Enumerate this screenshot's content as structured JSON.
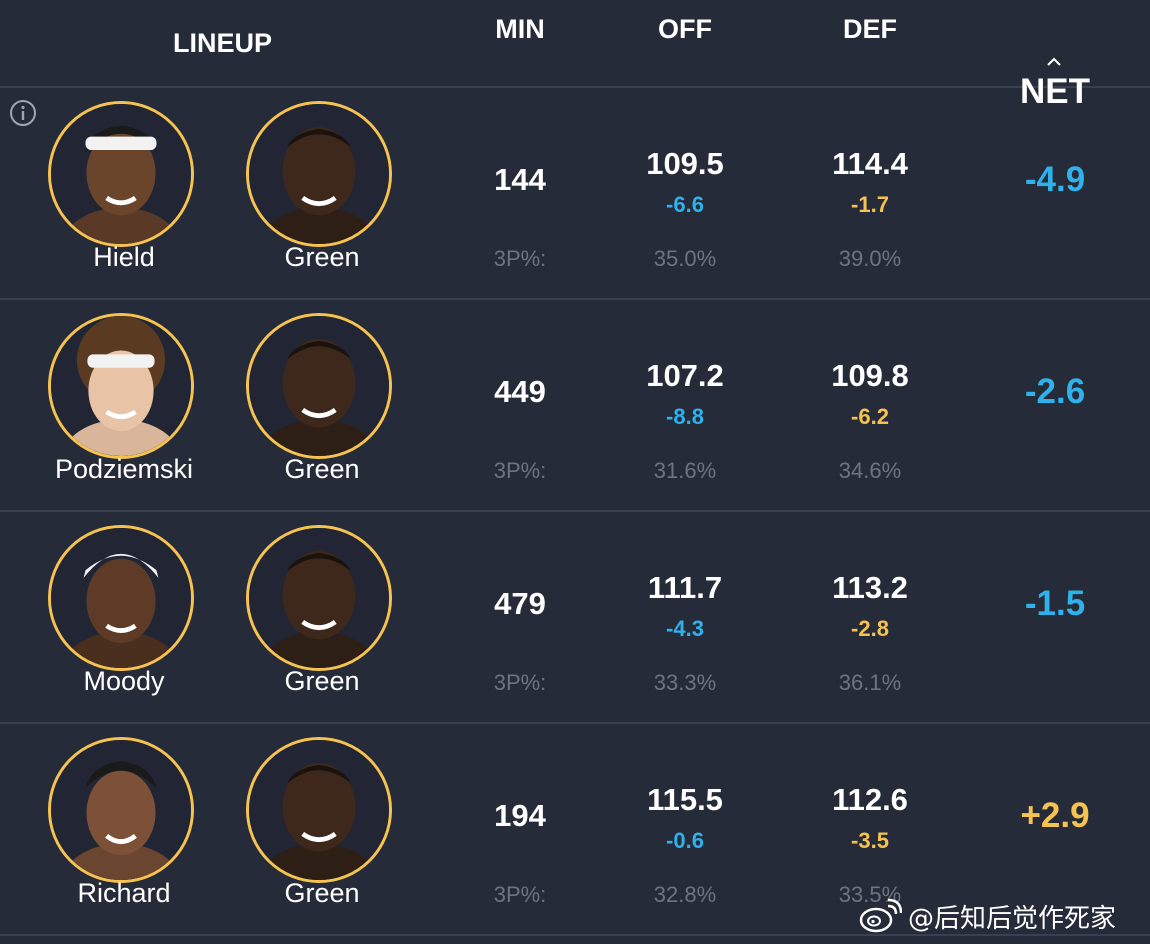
{
  "header": {
    "lineup": "LINEUP",
    "min": "MIN",
    "off": "OFF",
    "def": "DEF",
    "net": "NET",
    "sort_icon": "chevron-up-icon"
  },
  "colors": {
    "background": "#262b39",
    "divider": "#3a4052",
    "ring": "#f6c350",
    "negative": "#2fb1ec",
    "positive": "#f6c350",
    "muted": "#6d7384"
  },
  "rows": [
    {
      "players": [
        "Hield",
        "Green"
      ],
      "min": "144",
      "off": "109.5",
      "off_delta": "-6.6",
      "def": "114.4",
      "def_delta": "-1.7",
      "net": "-4.9",
      "three_label": "3P%:",
      "off_3p": "35.0%",
      "def_3p": "39.0%"
    },
    {
      "players": [
        "Podziemski",
        "Green"
      ],
      "min": "449",
      "off": "107.2",
      "off_delta": "-8.8",
      "def": "109.8",
      "def_delta": "-6.2",
      "net": "-2.6",
      "three_label": "3P%:",
      "off_3p": "31.6%",
      "def_3p": "34.6%"
    },
    {
      "players": [
        "Moody",
        "Green"
      ],
      "min": "479",
      "off": "111.7",
      "off_delta": "-4.3",
      "def": "113.2",
      "def_delta": "-2.8",
      "net": "-1.5",
      "three_label": "3P%:",
      "off_3p": "33.3%",
      "def_3p": "36.1%"
    },
    {
      "players": [
        "Richard",
        "Green"
      ],
      "min": "194",
      "off": "115.5",
      "off_delta": "-0.6",
      "def": "112.6",
      "def_delta": "-3.5",
      "net": "+2.9",
      "three_label": "3P%:",
      "off_3p": "32.8%",
      "def_3p": "33.5%"
    }
  ],
  "watermark": {
    "icon": "weibo-logo-icon",
    "text": "@后知后觉作死家"
  }
}
